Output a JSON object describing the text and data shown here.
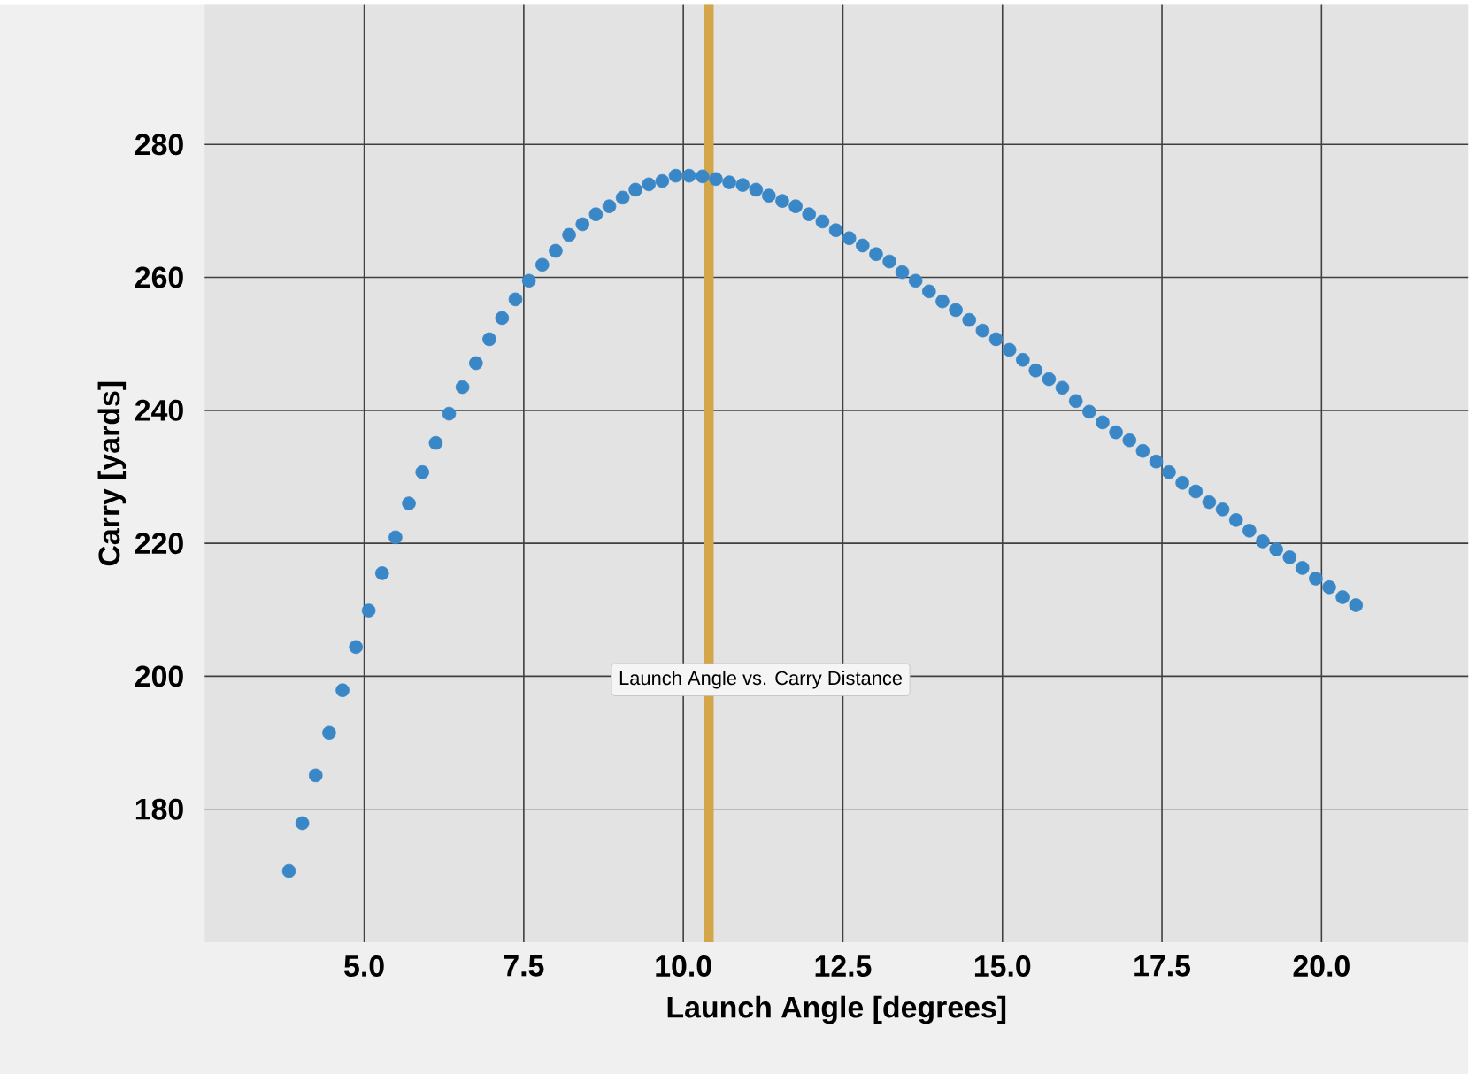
{
  "chart_data": {
    "type": "scatter",
    "xlabel": "Launch Angle [degrees]",
    "ylabel": "Carry [yards]",
    "x": [
      3.82,
      4.03,
      4.24,
      4.45,
      4.66,
      4.87,
      5.07,
      5.28,
      5.49,
      5.7,
      5.91,
      6.12,
      6.33,
      6.54,
      6.75,
      6.96,
      7.16,
      7.37,
      7.58,
      7.79,
      8.0,
      8.21,
      8.42,
      8.63,
      8.84,
      9.05,
      9.25,
      9.46,
      9.67,
      9.88,
      10.09,
      10.3,
      10.51,
      10.72,
      10.93,
      11.14,
      11.34,
      11.55,
      11.76,
      11.97,
      12.18,
      12.39,
      12.6,
      12.81,
      13.02,
      13.23,
      13.43,
      13.64,
      13.85,
      14.06,
      14.27,
      14.48,
      14.69,
      14.9,
      15.11,
      15.32,
      15.52,
      15.73,
      15.94,
      16.15,
      16.36,
      16.57,
      16.78,
      16.99,
      17.2,
      17.41,
      17.61,
      17.82,
      18.03,
      18.24,
      18.45,
      18.66,
      18.87,
      19.08,
      19.29,
      19.5,
      19.7,
      19.91,
      20.12,
      20.33,
      20.54
    ],
    "series": [
      {
        "color": "#3a87c8",
        "values": [
          170.7,
          177.9,
          185.1,
          191.5,
          197.9,
          204.4,
          209.9,
          215.5,
          220.9,
          226.0,
          230.7,
          235.1,
          239.5,
          243.5,
          247.1,
          250.7,
          253.9,
          256.7,
          259.5,
          261.9,
          264.0,
          266.4,
          268.0,
          269.5,
          270.7,
          272.0,
          273.2,
          274.0,
          274.5,
          275.3,
          275.3,
          275.2,
          274.8,
          274.3,
          273.9,
          273.2,
          272.3,
          271.5,
          270.7,
          269.5,
          268.4,
          267.1,
          265.9,
          264.8,
          263.5,
          262.4,
          260.8,
          259.5,
          257.9,
          256.4,
          255.1,
          253.6,
          252.0,
          250.7,
          249.1,
          247.6,
          246.0,
          244.7,
          243.4,
          241.4,
          239.8,
          238.2,
          236.7,
          235.5,
          233.9,
          232.3,
          230.7,
          229.1,
          227.8,
          226.2,
          225.1,
          223.5,
          221.9,
          220.3,
          219.1,
          217.9,
          216.3,
          214.7,
          213.4,
          211.9,
          210.7
        ]
      }
    ],
    "xlim": [
      2.5,
      22.3
    ],
    "ylim": [
      160,
      301
    ],
    "xticks": [
      {
        "value": 5,
        "label": "5.0"
      },
      {
        "value": 7.5,
        "label": "7.5"
      },
      {
        "value": 10,
        "label": "10.0"
      },
      {
        "value": 12.5,
        "label": "12.5"
      },
      {
        "value": 15,
        "label": "15.0"
      },
      {
        "value": 17.5,
        "label": "17.5"
      },
      {
        "value": 20,
        "label": "20.0"
      }
    ],
    "yticks": [
      180,
      200,
      220,
      240,
      260,
      280
    ],
    "grid": true,
    "marker": "circle",
    "ref_lines": [
      {
        "axis": "x",
        "value": 10.4,
        "color": "#d4a64a"
      }
    ],
    "annotations": [
      "Launch Angle vs. Carry Distance"
    ]
  }
}
